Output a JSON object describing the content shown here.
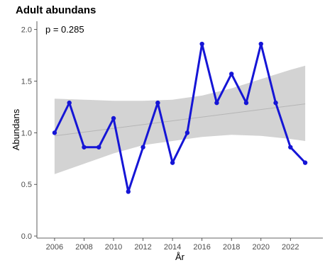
{
  "chart_data": {
    "type": "line",
    "title": "Adult abundans",
    "xlabel": "År",
    "ylabel": "Abundans",
    "annotation": "p = 0.285",
    "x": [
      2006,
      2007,
      2008,
      2009,
      2010,
      2011,
      2012,
      2013,
      2014,
      2015,
      2016,
      2017,
      2018,
      2019,
      2020,
      2021,
      2022,
      2023
    ],
    "series": [
      {
        "values": [
          1.0,
          1.29,
          0.86,
          0.86,
          1.14,
          0.43,
          0.86,
          1.29,
          0.71,
          1.0,
          1.86,
          1.29,
          1.57,
          1.29,
          1.86,
          1.29,
          0.86,
          0.71
        ]
      }
    ],
    "trend": {
      "start": [
        2006,
        0.97
      ],
      "end": [
        2023,
        1.28
      ]
    },
    "confidence_band": {
      "x": [
        2006,
        2008,
        2010,
        2012,
        2014,
        2016,
        2018,
        2020,
        2022,
        2023
      ],
      "upper": [
        1.33,
        1.32,
        1.31,
        1.31,
        1.32,
        1.36,
        1.43,
        1.52,
        1.61,
        1.65
      ],
      "lower": [
        0.6,
        0.7,
        0.8,
        0.88,
        0.92,
        0.96,
        0.98,
        0.97,
        0.94,
        0.92
      ]
    },
    "xticks": [
      "2006",
      "2008",
      "2010",
      "2012",
      "2014",
      "2016",
      "2018",
      "2020",
      "2022"
    ],
    "yticks": [
      "0.0",
      "0.5",
      "1.0",
      "1.5",
      "2.0"
    ],
    "xlim": [
      2004.8,
      2024.2
    ],
    "ylim": [
      -0.02,
      2.08
    ],
    "grid": false,
    "colors": {
      "line": "#1515d6",
      "band": "#d3d3d3",
      "trend": "#b5b5b5",
      "axis": "#333333"
    }
  }
}
